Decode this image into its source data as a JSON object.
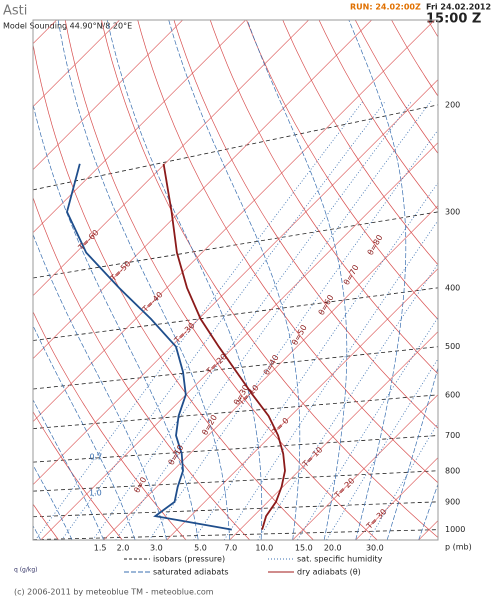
{
  "chart_data": {
    "type": "skewt",
    "title": "Asti",
    "subtitle": "Model Sounding   44.90°N/8.20°E",
    "run": "RUN: 24.02:00Z",
    "date": "Fri 24.02.2012",
    "time": "15:00 Z",
    "y_label": "p (mb)",
    "x_label": "q (g/kg)",
    "log_scale": true,
    "ylim": [
      1040,
      145
    ],
    "yticks": [
      200,
      300,
      400,
      500,
      600,
      700,
      800,
      900,
      1000
    ],
    "pressure": [
      1000,
      950,
      900,
      850,
      800,
      750,
      700,
      650,
      600,
      550,
      500,
      450,
      400,
      350,
      300,
      250
    ],
    "series": [
      {
        "color": "#8b1a1a",
        "values": [
          13.5,
          12.0,
          11.3,
          9.8,
          7.8,
          4.8,
          1.1,
          -3.5,
          -9.4,
          -15.6,
          -22.4,
          -29.7,
          -36.8,
          -44.0,
          -51.3,
          -60.2
        ]
      },
      {
        "color": "#1f4e8c",
        "values": [
          8.7,
          -5.6,
          -4.8,
          -6.7,
          -8.4,
          -11.3,
          -15.1,
          -17.8,
          -20.0,
          -24.1,
          -29.2,
          -37.6,
          -47.6,
          -58.4,
          -67.9,
          -73.5
        ]
      }
    ],
    "isotherms": [
      {
        "value": -60,
        "label": "T=-60"
      },
      {
        "value": -50,
        "label": "T=-50"
      },
      {
        "value": -40,
        "label": "T=-40"
      },
      {
        "value": -30,
        "label": "T=-30"
      },
      {
        "value": -20,
        "label": "T=-20"
      },
      {
        "value": -10,
        "label": "T=-10"
      },
      {
        "value": 0,
        "label": "T= 0"
      },
      {
        "value": 10,
        "label": "T= 10"
      },
      {
        "value": 20,
        "label": "T= 20"
      },
      {
        "value": 30,
        "label": "T= 30"
      }
    ],
    "dry_adiabats": [
      {
        "value": 0,
        "label": "θ=0"
      },
      {
        "value": 10,
        "label": "θ=10"
      },
      {
        "value": 20,
        "label": "θ=20"
      },
      {
        "value": 30,
        "label": "θ=30"
      },
      {
        "value": 40,
        "label": "θ=40"
      },
      {
        "value": 50,
        "label": "θ=50"
      },
      {
        "value": 60,
        "label": "θ=60"
      },
      {
        "value": 70,
        "label": "θ=70"
      },
      {
        "value": 80,
        "label": "θ=80"
      }
    ],
    "humidity": [
      0.7,
      {
        "value": 1,
        "label": "1.0"
      },
      1.5,
      {
        "value": 2,
        "label": "2.0"
      },
      {
        "value": 3,
        "label": "3.0"
      },
      {
        "value": 5,
        "label": "5.0"
      },
      {
        "value": 7,
        "label": "7.0"
      },
      {
        "value": 10,
        "label": "10.0"
      },
      {
        "value": 15,
        "label": "15.0"
      },
      {
        "value": 20,
        "label": "20.0"
      },
      {
        "value": 30,
        "label": "30.0"
      }
    ],
    "legend": [
      "isobars (pressure)",
      "saturated adiabats",
      "sat. specific humidity",
      "dry adiabats (θ)"
    ],
    "footer": "(c) 2006-2011 by meteoblue TM - meteoblue.com"
  }
}
